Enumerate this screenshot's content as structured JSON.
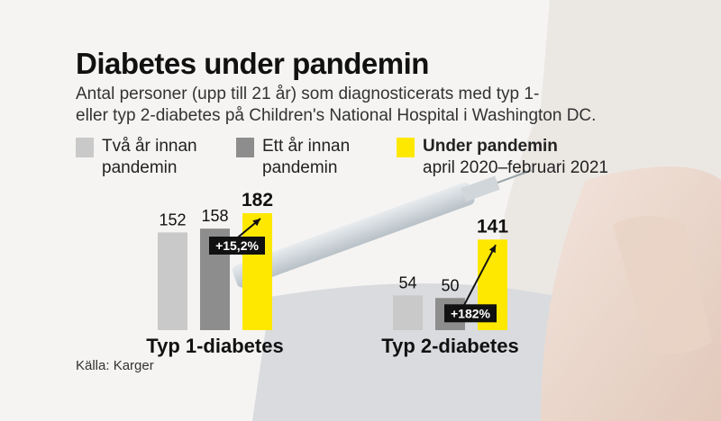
{
  "title": "Diabetes under pandemin",
  "subtitle_line1": "Antal personer (upp till 21 år) som diagnosticerats med typ 1-",
  "subtitle_line2": "eller typ 2-diabetes på Children's National Hospital i Washington DC.",
  "legend": [
    {
      "line1": "Två år innan",
      "line2": "pandemin",
      "color": "#c9c9c9"
    },
    {
      "line1": "Ett år innan",
      "line2": "pandemin",
      "color": "#8d8d8d"
    },
    {
      "line1": "Under pandemin",
      "line2": "april 2020–februari 2021",
      "color": "#ffe800"
    }
  ],
  "source": "Källa: Karger",
  "chart_data": {
    "type": "bar",
    "series_names": [
      "Två år innan pandemin",
      "Ett år innan pandemin",
      "Under pandemin"
    ],
    "groups": [
      {
        "label": "Typ 1-diabetes",
        "values": [
          152,
          158,
          182
        ],
        "value_labels": [
          "152",
          "158",
          "182"
        ],
        "change_label": "+15,2%"
      },
      {
        "label": "Typ 2-diabetes",
        "values": [
          54,
          50,
          141
        ],
        "value_labels": [
          "54",
          "50",
          "141"
        ],
        "change_label": "+182%"
      }
    ]
  }
}
